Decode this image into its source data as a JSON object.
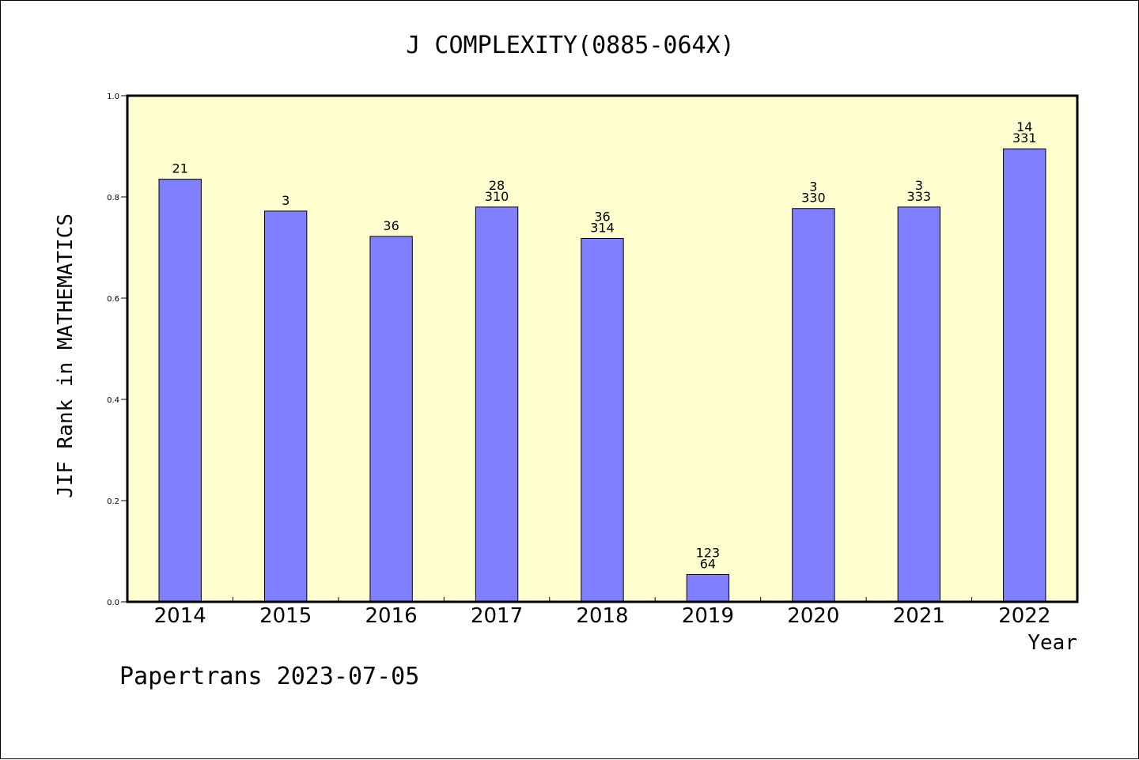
{
  "chart_data": {
    "type": "bar",
    "title": "J COMPLEXITY(0885-064X)",
    "xlabel": "Year",
    "ylabel": "JIF Rank in MATHEMATICS",
    "footer": "Papertrans 2023-07-05",
    "categories": [
      "2014",
      "2015",
      "2016",
      "2017",
      "2018",
      "2019",
      "2020",
      "2021",
      "2022"
    ],
    "values": [
      0.835,
      0.772,
      0.722,
      0.78,
      0.718,
      0.054,
      0.777,
      0.78,
      0.895
    ],
    "labels": [
      [
        "21"
      ],
      [
        "3"
      ],
      [
        "36"
      ],
      [
        "28",
        "310"
      ],
      [
        "36",
        "314"
      ],
      [
        "123",
        "64"
      ],
      [
        "3",
        "330"
      ],
      [
        "3",
        "333"
      ],
      [
        "14",
        "331"
      ]
    ],
    "ylim": [
      0,
      1.0
    ],
    "yticks": [
      "0.0",
      "0.2",
      "0.4",
      "0.6",
      "0.8",
      "1.0"
    ],
    "grid": false,
    "colors": {
      "bar": "#8080ff",
      "plot_background": "#ffffd0",
      "axis": "#000000"
    }
  }
}
